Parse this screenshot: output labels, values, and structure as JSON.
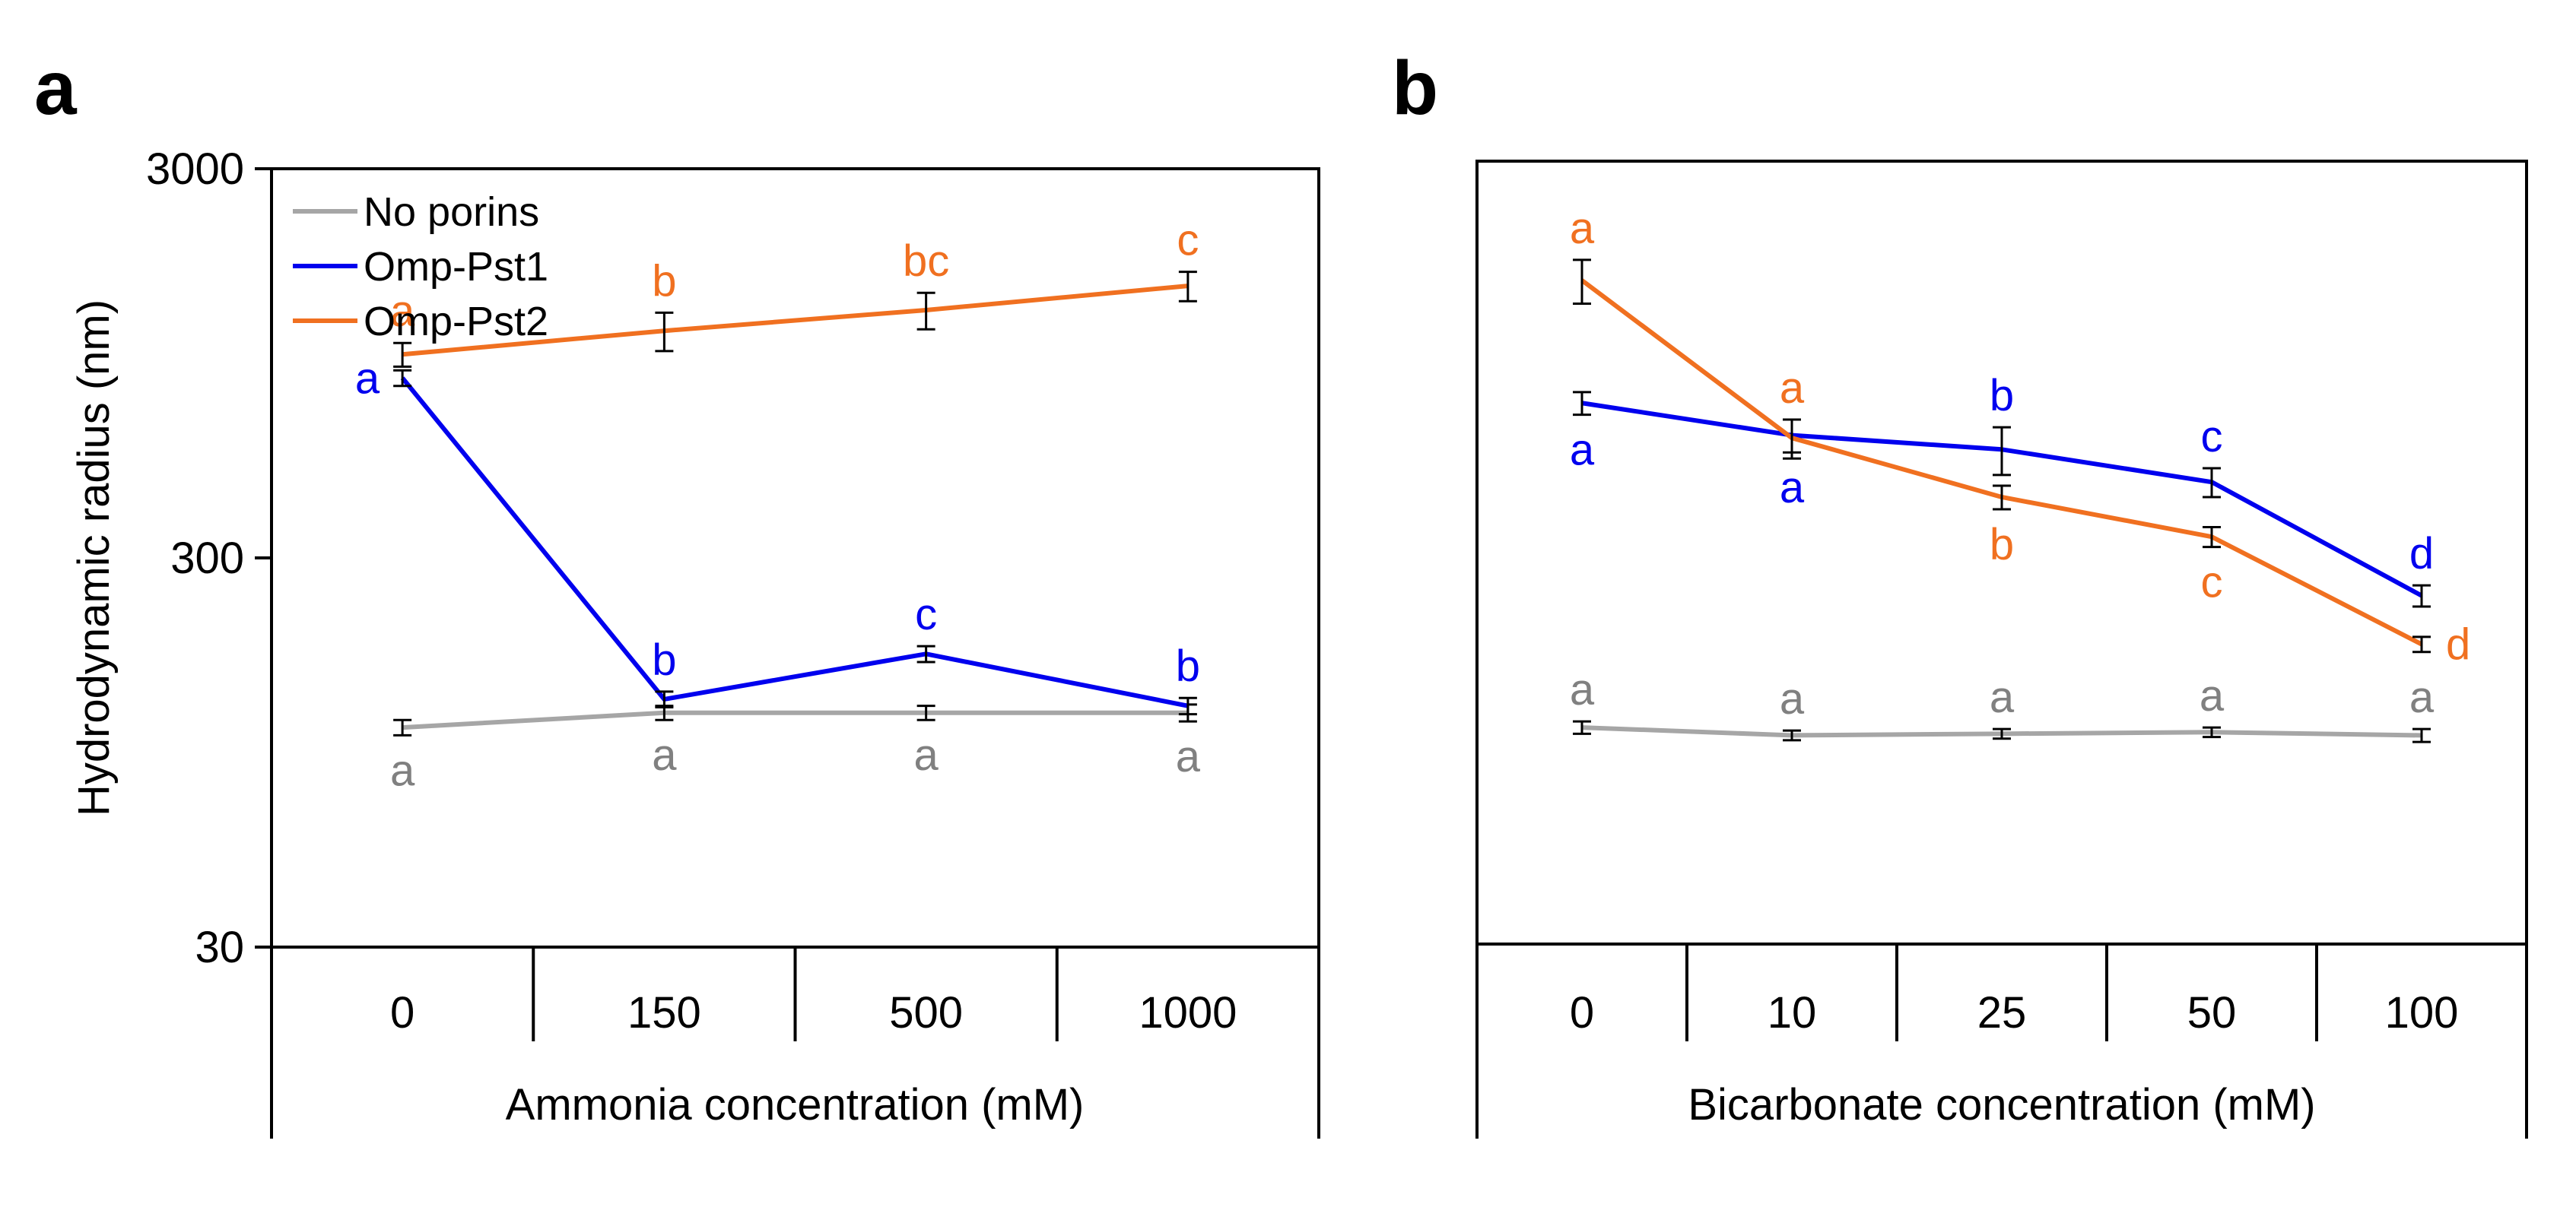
{
  "chart_data": [
    {
      "panel": "a",
      "type": "line",
      "categories": [
        "0",
        "150",
        "500",
        "1000"
      ],
      "xlabel": "Ammonia concentration (mM)",
      "ylabel": "Hydrodynamic radius (nm)",
      "yscale": "log",
      "ylim": [
        30,
        3000
      ],
      "yticks": [
        "30",
        "300",
        "3000"
      ],
      "legend_position": "top-left",
      "series": [
        {
          "name": "No porins",
          "color": "#a6a6a6",
          "label_color": "#808080",
          "values": [
            110,
            120,
            120,
            120
          ],
          "errors": [
            5,
            5,
            5,
            6
          ],
          "letters": [
            "a",
            "a",
            "a",
            "a"
          ],
          "letter_pos": [
            "below",
            "below",
            "below",
            "below"
          ]
        },
        {
          "name": "Omp-Pst1",
          "color": "#0000ee",
          "label_color": "#0000ee",
          "values": [
            870,
            130,
            170,
            125
          ],
          "errors": [
            40,
            6,
            8,
            6
          ],
          "letters": [
            "a",
            "b",
            "c",
            "b"
          ],
          "letter_pos": [
            "left",
            "above",
            "above",
            "above"
          ]
        },
        {
          "name": "Omp-Pst2",
          "color": "#f07020",
          "label_color": "#f07020",
          "values": [
            1000,
            1150,
            1300,
            1500
          ],
          "errors": [
            70,
            130,
            140,
            130
          ],
          "letters": [
            "a",
            "b",
            "bc",
            "c"
          ],
          "letter_pos": [
            "above",
            "above",
            "above",
            "above"
          ]
        }
      ]
    },
    {
      "panel": "b",
      "type": "line",
      "categories": [
        "0",
        "10",
        "25",
        "50",
        "100"
      ],
      "xlabel": "Bicarbonate concentration (mM)",
      "ylabel": "",
      "yscale": "log",
      "ylim": [
        30,
        3000
      ],
      "series": [
        {
          "name": "No porins",
          "color": "#a6a6a6",
          "label_color": "#808080",
          "values": [
            110,
            105,
            106,
            107,
            105
          ],
          "errors": [
            4,
            3,
            3,
            3,
            4
          ],
          "letters": [
            "a",
            "a",
            "a",
            "a",
            "a"
          ],
          "letter_pos": [
            "above",
            "above",
            "above",
            "above",
            "above"
          ]
        },
        {
          "name": "Omp-Pst1",
          "color": "#0000ee",
          "label_color": "#0000ee",
          "values": [
            750,
            620,
            570,
            470,
            240
          ],
          "errors": [
            50,
            60,
            80,
            40,
            15
          ],
          "letters": [
            "a",
            "a",
            "b",
            "c",
            "d"
          ],
          "letter_pos": [
            "below",
            "below",
            "above",
            "above",
            "above"
          ]
        },
        {
          "name": "Omp-Pst2",
          "color": "#f07020",
          "label_color": "#f07020",
          "values": [
            1550,
            610,
            430,
            340,
            180
          ],
          "errors": [
            200,
            70,
            30,
            20,
            8
          ],
          "letters": [
            "a",
            "a",
            "b",
            "c",
            "d"
          ],
          "letter_pos": [
            "above",
            "above",
            "below",
            "below",
            "right"
          ]
        }
      ]
    }
  ]
}
